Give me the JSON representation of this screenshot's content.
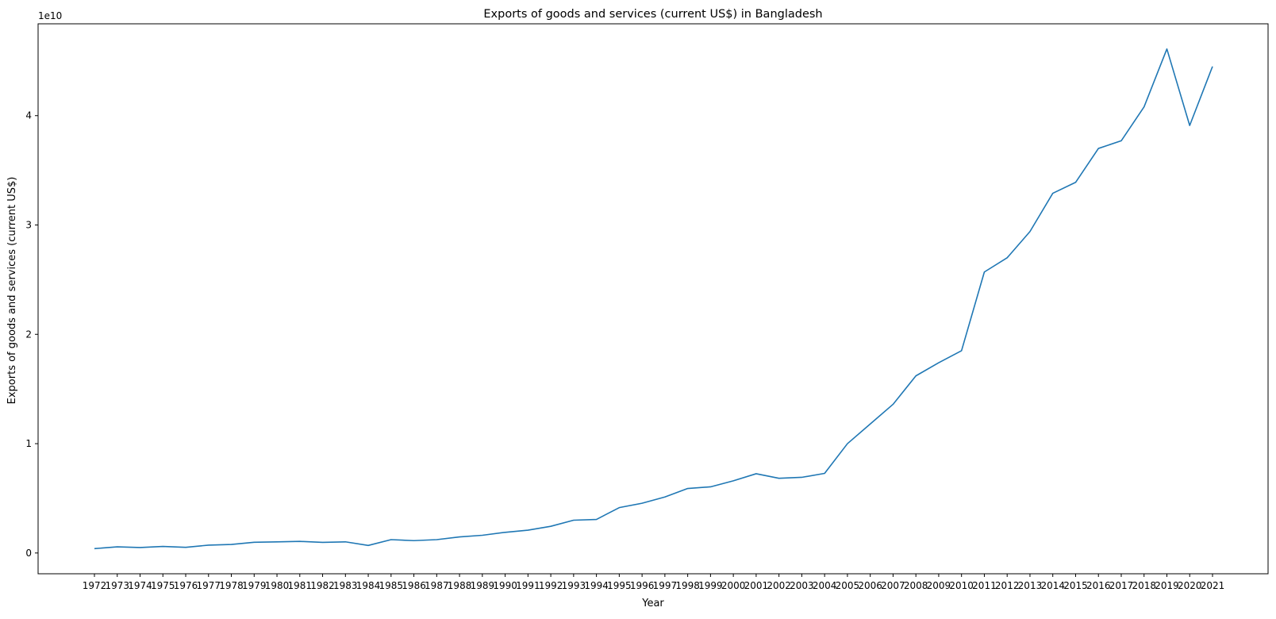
{
  "chart_data": {
    "type": "line",
    "title": "Exports of goods and services (current US$) in Bangladesh",
    "xlabel": "Year",
    "ylabel": "Exports of goods and services (current US$)",
    "y_offset_label": "1e10",
    "ylim": [
      -1900000000.0,
      48400000000.0
    ],
    "yticks": [
      0,
      10000000000.0,
      20000000000.0,
      30000000000.0,
      40000000000.0
    ],
    "ytick_labels": [
      "0",
      "1",
      "2",
      "3",
      "4"
    ],
    "grid": false,
    "line_color": "#1f77b4",
    "x": [
      "1972",
      "1973",
      "1974",
      "1975",
      "1976",
      "1977",
      "1978",
      "1979",
      "1980",
      "1981",
      "1982",
      "1983",
      "1984",
      "1985",
      "1986",
      "1987",
      "1988",
      "1989",
      "1990",
      "1991",
      "1992",
      "1993",
      "1994",
      "1995",
      "1996",
      "1997",
      "1998",
      "1999",
      "2000",
      "2001",
      "2002",
      "2003",
      "2004",
      "2005",
      "2006",
      "2007",
      "2008",
      "2009",
      "2010",
      "2011",
      "2012",
      "2013",
      "2014",
      "2015",
      "2016",
      "2017",
      "2018",
      "2019",
      "2020",
      "2021"
    ],
    "series": [
      {
        "values": [
          400000000.0,
          560000000.0,
          500000000.0,
          600000000.0,
          520000000.0,
          720000000.0,
          780000000.0,
          980000000.0,
          1020000000.0,
          1060000000.0,
          970000000.0,
          1020000000.0,
          690000000.0,
          1220000000.0,
          1130000000.0,
          1220000000.0,
          1470000000.0,
          1620000000.0,
          1890000000.0,
          2090000000.0,
          2440000000.0,
          3000000000.0,
          3070000000.0,
          4150000000.0,
          4550000000.0,
          5120000000.0,
          5900000000.0,
          6050000000.0,
          6600000000.0,
          7250000000.0,
          6830000000.0,
          6920000000.0,
          7280000000.0,
          10000000000.0,
          11800000000.0,
          13600000000.0,
          16200000000.0,
          17400000000.0,
          18500000000.0,
          25700000000.0,
          27000000000.0,
          29400000000.0,
          32900000000.0,
          33900000000.0,
          37000000000.0,
          37700000000.0,
          40800000000.0,
          46100000000.0,
          39100000000.0,
          44500000000.0
        ]
      }
    ]
  }
}
